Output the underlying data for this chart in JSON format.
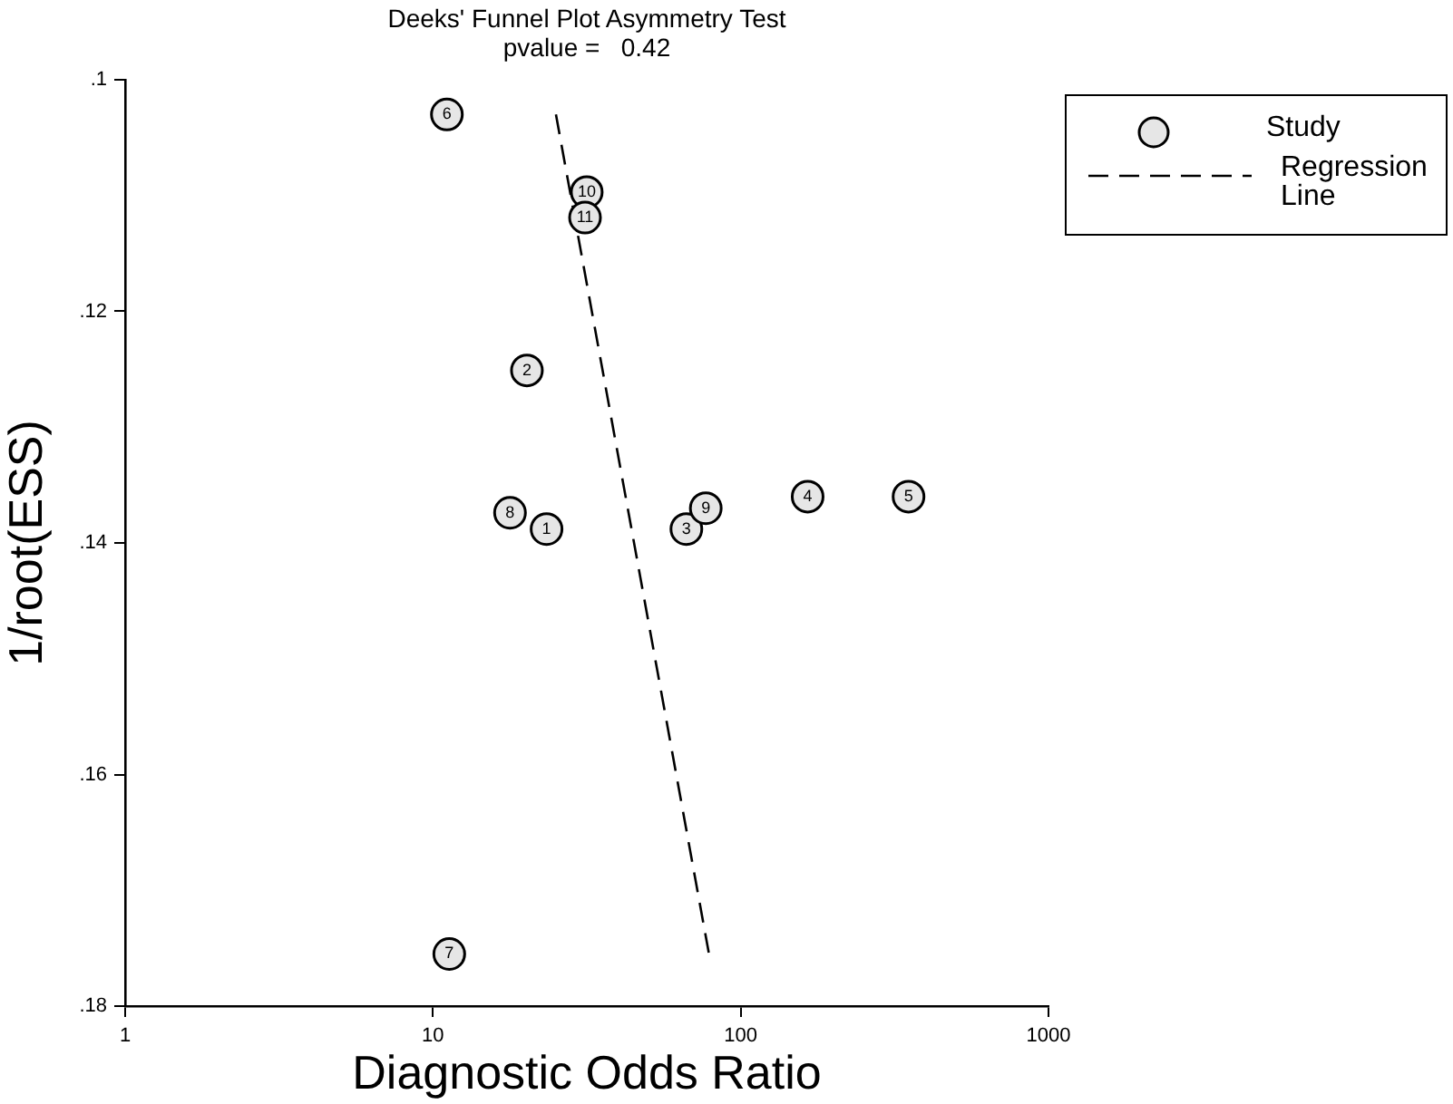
{
  "chart_data": {
    "type": "scatter",
    "title": "Deeks' Funnel Plot Asymmetry Test",
    "subtitle": "pvalue =   0.42",
    "xlabel": "Diagnostic Odds Ratio",
    "ylabel": "1/root(ESS)",
    "log": "x",
    "xlim": [
      1,
      1000
    ],
    "xticks": [
      1,
      10,
      100,
      1000
    ],
    "ylim": [
      0.18,
      0.1
    ],
    "yticks": [
      {
        "value": 0.1,
        "label": ".1"
      },
      {
        "value": 0.12,
        "label": ".12"
      },
      {
        "value": 0.14,
        "label": ".14"
      },
      {
        "value": 0.16,
        "label": ".16"
      },
      {
        "value": 0.18,
        "label": ".18"
      }
    ],
    "grid": false,
    "legend": "top right",
    "series": [
      {
        "name": "Study",
        "type": "scatter",
        "marker": "circle",
        "color": "#e6e6e6",
        "x": [
          23.4,
          20.2,
          66.6,
          165,
          351,
          11.1,
          11.3,
          17.8,
          77,
          31.6,
          31.2
        ],
        "values": [
          0.1388,
          0.1251,
          0.1388,
          0.136,
          0.136,
          0.103,
          0.1755,
          0.1374,
          0.137,
          0.1097,
          0.1119
        ]
      },
      {
        "name": "Regression Line",
        "type": "line",
        "line_style": "dashed",
        "marker": "none",
        "color": "#000000",
        "x": [
          25.1,
          79
        ],
        "values": [
          0.103,
          0.1756
        ]
      }
    ],
    "annotations": [
      {
        "text": "1",
        "x": 23.4,
        "y": 0.1388
      },
      {
        "text": "2",
        "x": 20.2,
        "y": 0.1251
      },
      {
        "text": "3",
        "x": 66.6,
        "y": 0.1388
      },
      {
        "text": "4",
        "x": 165,
        "y": 0.136
      },
      {
        "text": "5",
        "x": 351,
        "y": 0.136
      },
      {
        "text": "6",
        "x": 11.1,
        "y": 0.103
      },
      {
        "text": "7",
        "x": 11.3,
        "y": 0.1755
      },
      {
        "text": "8",
        "x": 17.8,
        "y": 0.1374
      },
      {
        "text": "9",
        "x": 77,
        "y": 0.137
      },
      {
        "text": "10",
        "x": 31.6,
        "y": 0.1097
      },
      {
        "text": "11",
        "x": 31.2,
        "y": 0.1119
      }
    ]
  }
}
